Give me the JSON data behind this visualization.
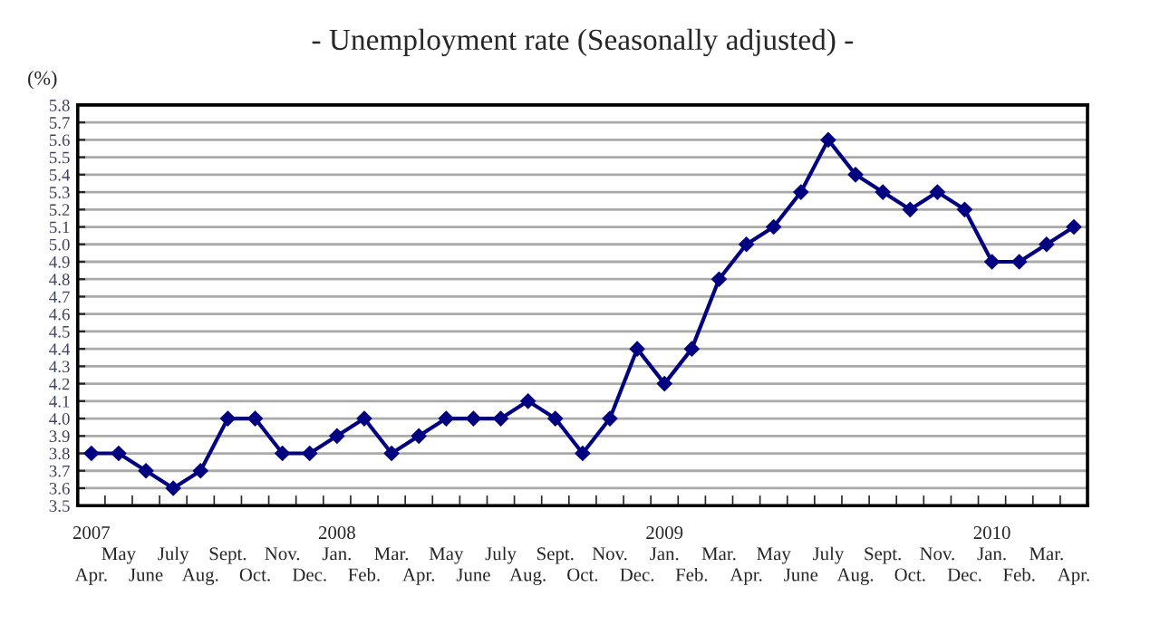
{
  "chart_data": {
    "type": "line",
    "title": "- Unemployment rate (Seasonally adjusted) -",
    "ylabel": "(%)",
    "categories": [
      "2007\nApr.",
      "May",
      "June",
      "July",
      "Aug.",
      "Sept.",
      "Oct.",
      "Nov.",
      "Dec.",
      "2008\nJan.",
      "Feb.",
      "Mar.",
      "Apr.",
      "May",
      "June",
      "July",
      "Aug.",
      "Sept.",
      "Oct.",
      "Nov.",
      "Dec.",
      "2009\nJan.",
      "Feb.",
      "Mar.",
      "Apr.",
      "May",
      "June",
      "July",
      "Aug.",
      "Sept.",
      "Oct.",
      "Nov.",
      "Dec.",
      "2010\nJan.",
      "Feb.",
      "Mar.",
      "Apr."
    ],
    "series": [
      {
        "color": "#000080",
        "values": [
          3.8,
          3.8,
          3.7,
          3.6,
          3.7,
          4.0,
          4.0,
          3.8,
          3.8,
          3.9,
          4.0,
          3.8,
          3.9,
          4.0,
          4.0,
          4.0,
          4.1,
          4.0,
          3.8,
          4.0,
          4.4,
          4.2,
          4.4,
          4.8,
          5.0,
          5.1,
          5.3,
          5.6,
          5.4,
          5.3,
          5.2,
          5.3,
          5.2,
          4.9,
          4.9,
          5.0,
          5.1
        ]
      }
    ],
    "ylim": [
      3.5,
      5.8
    ],
    "yticks": [
      3.5,
      3.6,
      3.7,
      3.8,
      3.9,
      {
        "value": 4,
        "label": "4.0"
      },
      4.1,
      4.2,
      4.3,
      4.4,
      4.5,
      4.6,
      4.7,
      4.8,
      4.9,
      {
        "value": 5,
        "label": "5.0"
      },
      5.1,
      5.2,
      5.3,
      5.4,
      5.5,
      5.6,
      5.7,
      5.8
    ],
    "grid": "y",
    "marker": "diamond",
    "line_style": "solid",
    "legend": false
  }
}
